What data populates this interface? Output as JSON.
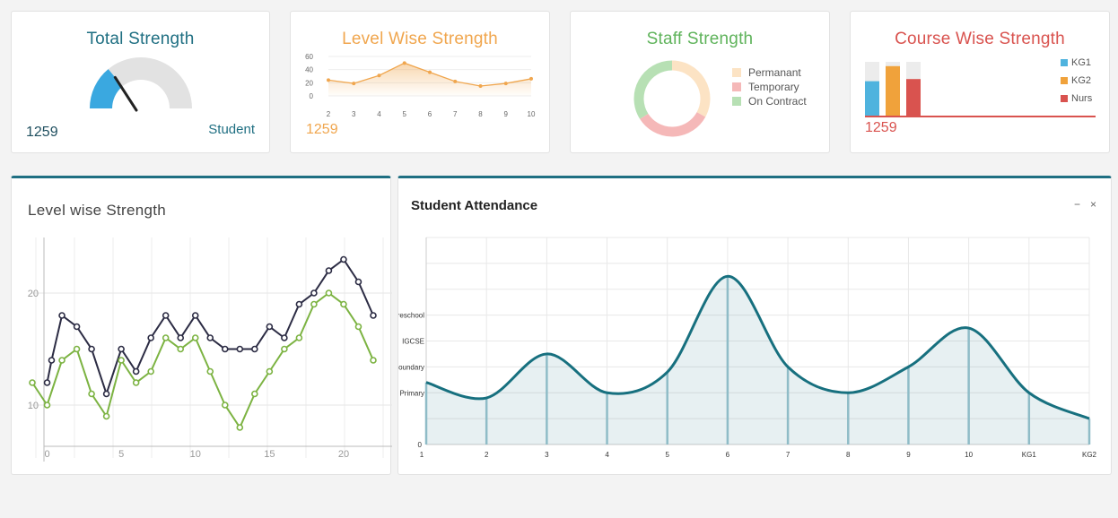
{
  "cards": {
    "total_strength": {
      "title": "Total Strength",
      "value": "1259",
      "label": "Student",
      "gauge_fraction": 0.28,
      "color": "#1f6f82",
      "fill_color": "#3aa8e0"
    },
    "level_wise_mini": {
      "title": "Level Wise Strength",
      "value": "1259",
      "color": "#f0a64e"
    },
    "staff_strength": {
      "title": "Staff Strength",
      "color": "#5fb35b",
      "legend": [
        {
          "name": "Permanant",
          "color": "#fce3c4"
        },
        {
          "name": "Temporary",
          "color": "#f5b8b8"
        },
        {
          "name": "On Contract",
          "color": "#b7e0b4"
        }
      ]
    },
    "course_wise": {
      "title": "Course Wise Strength",
      "value": "1259",
      "color": "#d9534f",
      "legend": [
        {
          "name": "KG1",
          "color": "#4fb3de"
        },
        {
          "name": "KG2",
          "color": "#f0a23b"
        },
        {
          "name": "Nurs",
          "color": "#d9534f"
        }
      ]
    }
  },
  "panels": {
    "level_wise": {
      "title": "Level wise Strength"
    },
    "attendance": {
      "title": "Student Attendance",
      "minimize_icon": "minimize-icon",
      "close_icon": "close-icon"
    }
  },
  "chart_data": [
    {
      "type": "pie",
      "title": "Staff Strength",
      "labels": [
        "Permanant",
        "Temporary",
        "On Contract"
      ],
      "values": [
        33,
        33,
        34
      ]
    },
    {
      "type": "line",
      "title": "Level Wise Strength",
      "x": [
        2,
        3,
        4,
        5,
        6,
        7,
        8,
        9,
        10
      ],
      "y": [
        24,
        19,
        31,
        50,
        36,
        22,
        15,
        19,
        26
      ],
      "ylim": [
        0,
        60
      ],
      "yticks": [
        0,
        20,
        40,
        60
      ],
      "xticks": [
        2,
        3,
        4,
        5,
        6,
        7,
        8,
        9,
        10
      ],
      "area": true
    },
    {
      "type": "bar",
      "title": "Course Wise Strength",
      "categories": [
        "KG1",
        "KG2",
        "Nurs"
      ],
      "values": [
        64,
        92,
        68
      ],
      "ylim": [
        0,
        100
      ]
    },
    {
      "type": "line",
      "title": "Level wise Strength",
      "xticks": [
        0,
        5,
        10,
        15,
        20
      ],
      "yticks": [
        10,
        20
      ],
      "xlim": [
        -1,
        22
      ],
      "ylim": [
        5,
        25
      ],
      "grid": true,
      "series": [
        {
          "color": "#2c2c44",
          "x": [
            0,
            0.3,
            1,
            2,
            3,
            4,
            5,
            6,
            7,
            8,
            9,
            10,
            11,
            12,
            13,
            14,
            15,
            16,
            17,
            18,
            19,
            20,
            21,
            22
          ],
          "y": [
            12,
            14,
            18,
            17,
            15,
            11,
            15,
            13,
            16,
            18,
            16,
            18,
            16,
            15,
            15,
            15,
            17,
            16,
            19,
            20,
            22,
            23,
            21,
            18
          ]
        },
        {
          "color": "#7cb342",
          "x": [
            -1,
            0,
            1,
            2,
            3,
            4,
            5,
            6,
            7,
            8,
            9,
            10,
            11,
            12,
            13,
            14,
            15,
            16,
            17,
            18,
            19,
            20,
            21,
            22
          ],
          "y": [
            12,
            10,
            14,
            15,
            11,
            9,
            14,
            12,
            13,
            16,
            15,
            16,
            13,
            10,
            8,
            11,
            13,
            15,
            16,
            19,
            20,
            19,
            17,
            14
          ]
        }
      ]
    },
    {
      "type": "area",
      "title": "Student Attendance",
      "categories": [
        "1",
        "2",
        "3",
        "4",
        "5",
        "6",
        "7",
        "8",
        "9",
        "10",
        "KG1",
        "KG2"
      ],
      "values": [
        24,
        18,
        35,
        20,
        28,
        65,
        30,
        20,
        30,
        45,
        20,
        10
      ],
      "ylim": [
        0,
        80
      ],
      "y_axis_labels": [
        {
          "label": "0",
          "value": 0
        },
        {
          "label": "Primary",
          "value": 20
        },
        {
          "label": "Secoundary",
          "value": 30
        },
        {
          "label": "IGCSE",
          "value": 40
        },
        {
          "label": "Preschool",
          "value": 50
        }
      ],
      "color": "#17707f",
      "grid": true
    }
  ]
}
